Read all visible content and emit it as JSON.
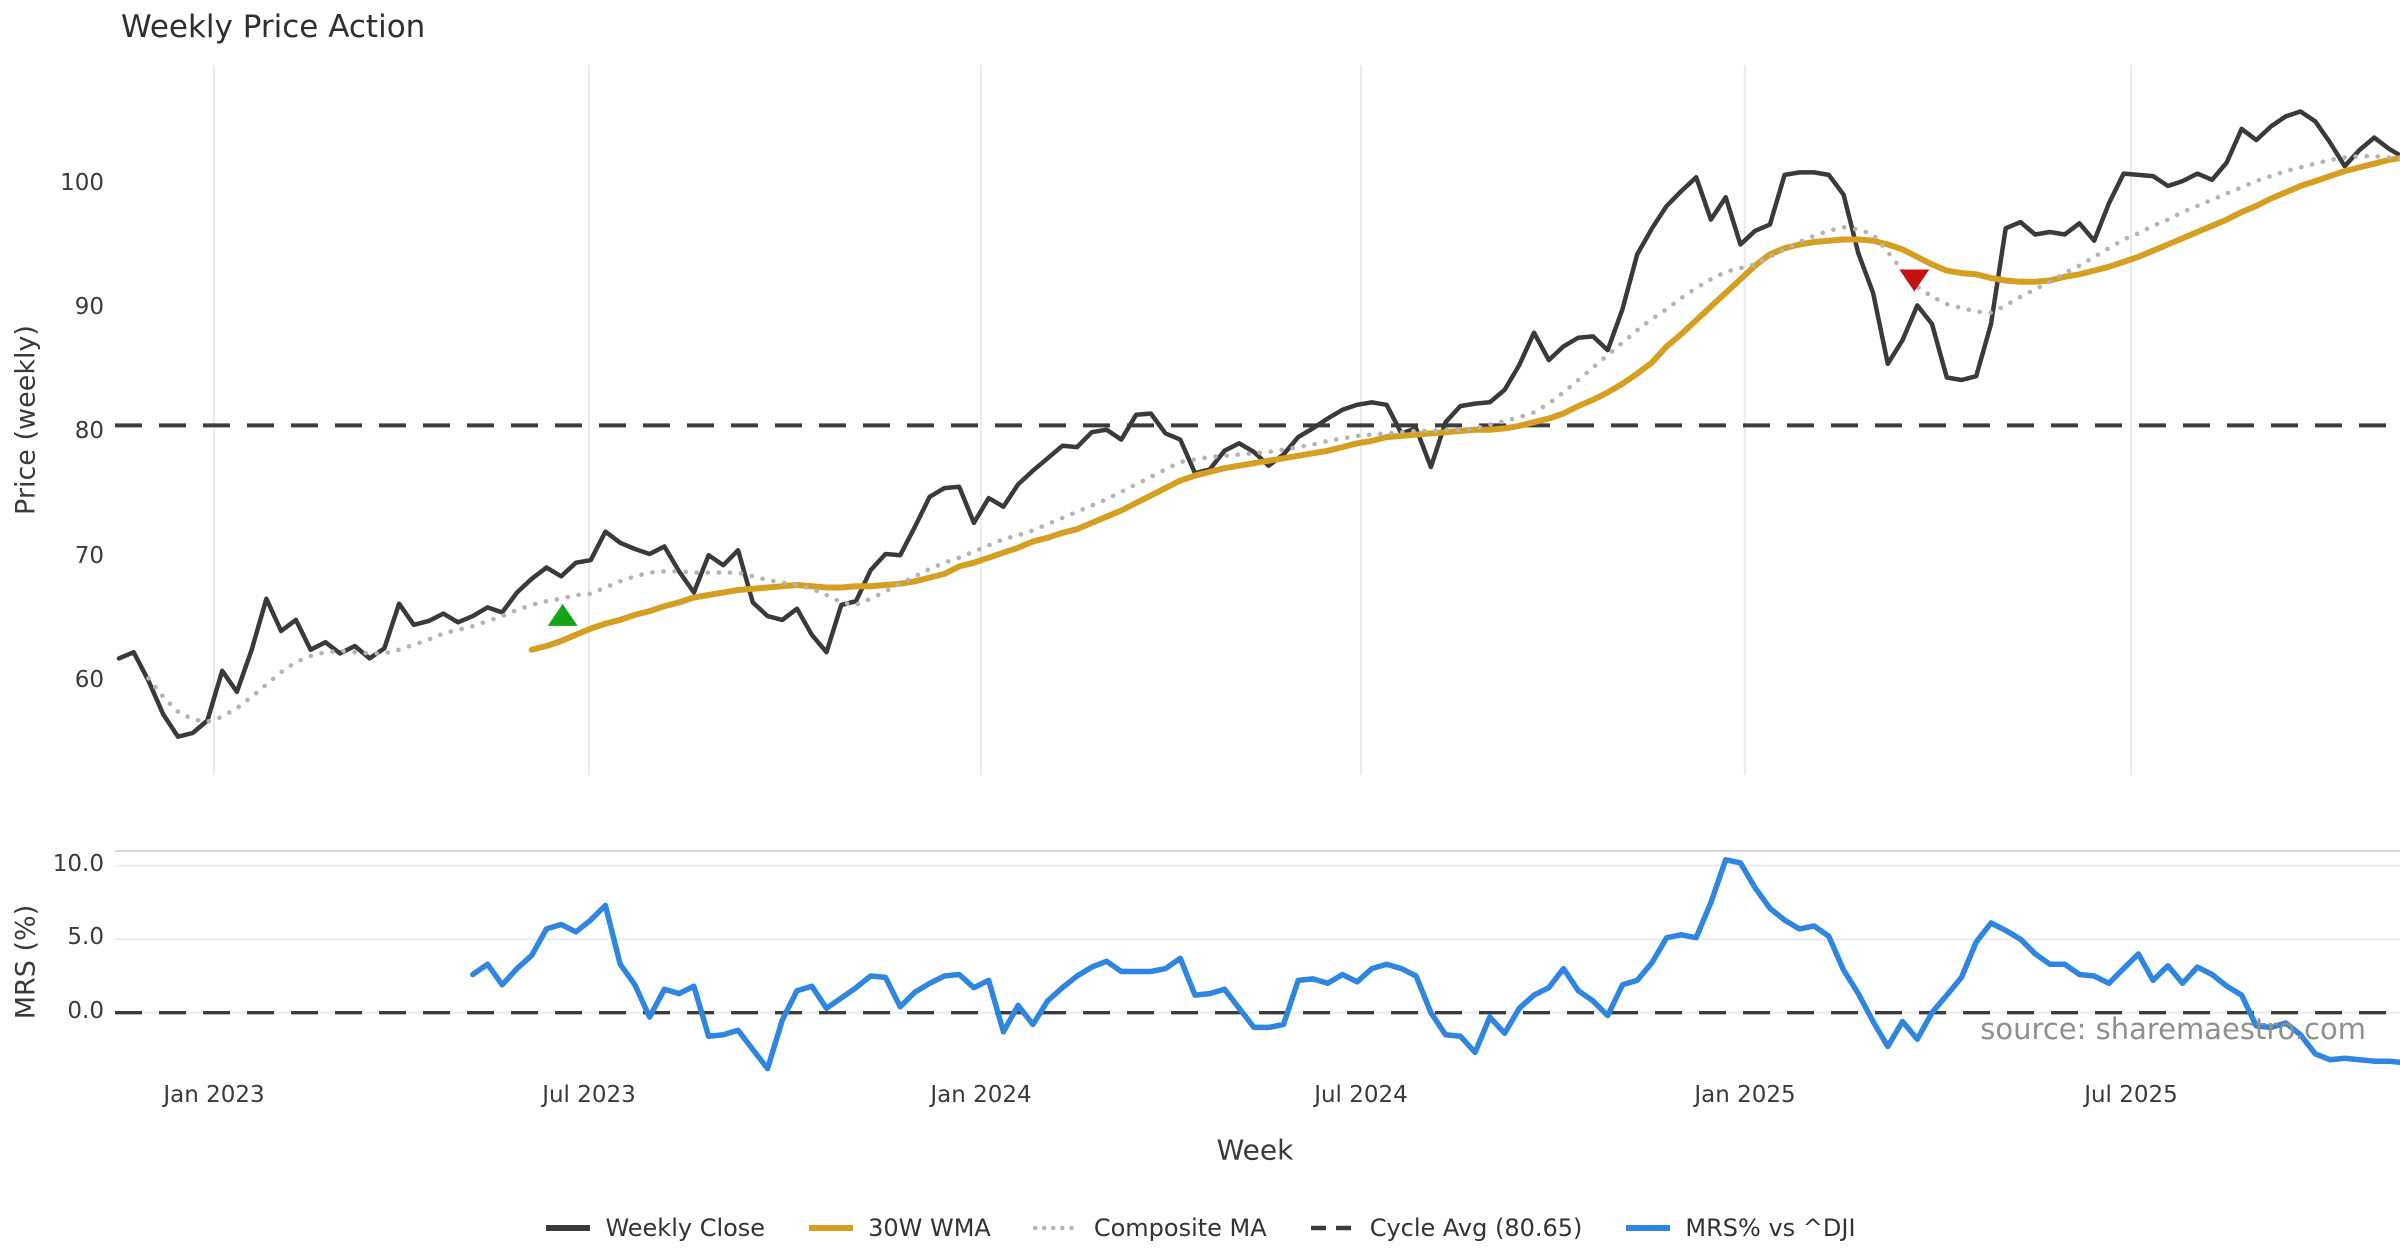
{
  "page": {
    "title": "Weekly Price Action",
    "source_note": "source: sharemaestro.com"
  },
  "colors": {
    "weekly_close": "#3a3a3a",
    "wma": "#d5a021",
    "composite": "#b3b3b8",
    "cycle_avg": "#3c3c3c",
    "mrs": "#2e86e0",
    "buy_marker": "#17a317",
    "sell_marker": "#c41111",
    "grid": "#e9e9f1",
    "panel_border": "#d5d5dc"
  },
  "legend": [
    {
      "label": "Weekly Close",
      "color": "#3a3a3a",
      "style": "solid"
    },
    {
      "label": "30W WMA",
      "color": "#d5a021",
      "style": "solid"
    },
    {
      "label": "Composite MA",
      "color": "#b3b3b8",
      "style": "dotted"
    },
    {
      "label": "Cycle Avg (80.65)",
      "color": "#3c3c3c",
      "style": "dashed"
    },
    {
      "label": "MRS% vs ^DJI",
      "color": "#2e86e0",
      "style": "solid"
    }
  ],
  "chart_data": [
    {
      "type": "line",
      "panel": "price",
      "ylabel": "Price (weekly)",
      "xlabel": "Week",
      "ylim": [
        52.5,
        109.6
      ],
      "yticks": [
        60,
        70,
        80,
        90,
        100
      ],
      "grid": "vertical",
      "legend_position": "bottom",
      "x_unit": "weeks since 2022-11-14 (weekly bars)",
      "xticks": [
        {
          "label": "Jan 2023",
          "week": 6.44
        },
        {
          "label": "Jul 2023",
          "week": 31.89
        },
        {
          "label": "Jan 2024",
          "week": 58.48
        },
        {
          "label": "Jul 2024",
          "week": 84.26
        },
        {
          "label": "Jan 2025",
          "week": 110.3
        },
        {
          "label": "Jul 2025",
          "week": 136.5
        }
      ],
      "series": [
        {
          "name": "Weekly Close",
          "color": "#3a3a3a",
          "style": "solid",
          "width": 4.5,
          "start_week": 0,
          "values": [
            61.9,
            62.4,
            60.1,
            57.4,
            55.6,
            55.9,
            56.9,
            60.9,
            59.2,
            62.6,
            66.7,
            64.1,
            65.0,
            62.6,
            63.2,
            62.3,
            62.9,
            61.9,
            62.7,
            66.3,
            64.6,
            64.9,
            65.5,
            64.8,
            65.3,
            66.0,
            65.6,
            67.2,
            68.3,
            69.2,
            68.5,
            69.6,
            69.8,
            72.1,
            71.2,
            70.7,
            70.3,
            70.9,
            68.9,
            67.2,
            70.2,
            69.4,
            70.6,
            66.4,
            65.3,
            65.0,
            65.9,
            63.8,
            62.4,
            66.2,
            66.5,
            69.0,
            70.3,
            70.2,
            72.5,
            74.9,
            75.6,
            75.7,
            72.8,
            74.8,
            74.1,
            75.9,
            77.0,
            78.0,
            79.0,
            78.9,
            80.1,
            80.3,
            79.5,
            81.5,
            81.6,
            80.0,
            79.5,
            76.8,
            77.1,
            78.6,
            79.2,
            78.5,
            77.4,
            78.3,
            79.7,
            80.4,
            81.2,
            81.9,
            82.3,
            82.5,
            82.3,
            80.0,
            80.4,
            77.3,
            80.9,
            82.2,
            82.4,
            82.5,
            83.5,
            85.5,
            88.1,
            85.9,
            87.0,
            87.7,
            87.8,
            86.7,
            90.0,
            94.4,
            96.5,
            98.3,
            99.5,
            100.6,
            97.2,
            99.0,
            95.2,
            96.3,
            96.8,
            100.8,
            101.0,
            101.0,
            100.8,
            99.2,
            94.5,
            91.3,
            85.6,
            87.5,
            90.3,
            88.8,
            84.5,
            84.3,
            84.6,
            88.8,
            96.5,
            97.0,
            96.0,
            96.2,
            96.0,
            96.9,
            95.5,
            98.5,
            100.9,
            100.8,
            100.7,
            99.9,
            100.3,
            100.9,
            100.4,
            101.8,
            104.5,
            103.6,
            104.7,
            105.5,
            105.9,
            105.1,
            103.4,
            101.5,
            102.8,
            103.8,
            102.9,
            102.2
          ]
        },
        {
          "name": "30W WMA",
          "color": "#d5a021",
          "style": "solid",
          "width": 6,
          "start_week": 28,
          "values": [
            62.6,
            62.9,
            63.3,
            63.8,
            64.3,
            64.7,
            65.0,
            65.4,
            65.7,
            66.1,
            66.4,
            66.8,
            67.0,
            67.2,
            67.4,
            67.5,
            67.6,
            67.7,
            67.8,
            67.7,
            67.6,
            67.6,
            67.7,
            67.7,
            67.8,
            67.9,
            68.1,
            68.4,
            68.7,
            69.3,
            69.6,
            70.0,
            70.4,
            70.8,
            71.3,
            71.6,
            72.0,
            72.3,
            72.8,
            73.3,
            73.8,
            74.4,
            75.0,
            75.6,
            76.2,
            76.6,
            76.9,
            77.2,
            77.4,
            77.6,
            77.8,
            78.0,
            78.2,
            78.4,
            78.6,
            78.9,
            79.2,
            79.4,
            79.7,
            79.8,
            79.9,
            80.0,
            80.1,
            80.2,
            80.3,
            80.3,
            80.4,
            80.6,
            80.9,
            81.2,
            81.6,
            82.2,
            82.7,
            83.3,
            84.0,
            84.8,
            85.7,
            87.0,
            88.0,
            89.1,
            90.2,
            91.3,
            92.4,
            93.5,
            94.4,
            94.9,
            95.2,
            95.4,
            95.5,
            95.6,
            95.6,
            95.5,
            95.2,
            94.8,
            94.2,
            93.6,
            93.1,
            92.9,
            92.8,
            92.5,
            92.3,
            92.2,
            92.2,
            92.3,
            92.6,
            92.8,
            93.1,
            93.4,
            93.8,
            94.2,
            94.7,
            95.2,
            95.7,
            96.2,
            96.7,
            97.2,
            97.8,
            98.3,
            98.9,
            99.4,
            99.9,
            100.3,
            100.7,
            101.1,
            101.4,
            101.7,
            102.0,
            102.2
          ]
        },
        {
          "name": "Composite MA",
          "color": "#b3b3b8",
          "style": "dotted",
          "width": 4.6,
          "start_week": 2,
          "values": [
            60.3,
            58.8,
            57.6,
            57.0,
            56.8,
            57.2,
            57.9,
            58.8,
            59.8,
            60.8,
            61.6,
            62.1,
            62.4,
            62.5,
            62.4,
            62.3,
            62.3,
            62.6,
            63.0,
            63.4,
            63.9,
            64.2,
            64.5,
            64.9,
            65.3,
            65.8,
            66.2,
            66.5,
            66.7,
            67.0,
            67.1,
            67.6,
            68.1,
            68.5,
            68.8,
            68.9,
            68.9,
            68.8,
            68.8,
            68.8,
            68.8,
            68.5,
            68.2,
            68.0,
            67.8,
            67.5,
            67.0,
            66.4,
            66.2,
            66.7,
            67.3,
            67.9,
            68.5,
            69.1,
            69.6,
            70.0,
            70.5,
            71.0,
            71.5,
            71.8,
            72.2,
            72.7,
            73.2,
            73.7,
            74.2,
            74.7,
            75.3,
            75.9,
            76.5,
            77.1,
            77.7,
            77.9,
            78.1,
            78.2,
            78.3,
            78.4,
            78.5,
            78.7,
            78.9,
            79.1,
            79.4,
            79.6,
            79.8,
            79.9,
            80.0,
            80.1,
            80.2,
            80.2,
            80.3,
            80.3,
            80.4,
            80.7,
            81.0,
            81.3,
            81.7,
            82.4,
            83.3,
            84.3,
            85.3,
            86.3,
            87.3,
            88.3,
            89.2,
            90.0,
            90.9,
            91.7,
            92.4,
            93.0,
            93.3,
            93.6,
            94.2,
            94.8,
            95.4,
            95.9,
            96.3,
            96.6,
            96.4,
            96.0,
            94.6,
            93.1,
            91.8,
            91.0,
            90.4,
            90.1,
            89.8,
            89.7,
            90.3,
            91.0,
            91.6,
            92.2,
            92.9,
            93.5,
            94.2,
            94.9,
            95.6,
            96.1,
            96.7,
            97.2,
            97.8,
            98.3,
            98.8,
            99.3,
            99.8,
            100.3,
            100.7,
            101.1,
            101.4,
            101.7,
            102.0,
            102.2,
            102.3,
            102.3,
            102.2,
            102.1
          ]
        },
        {
          "name": "Cycle Avg (80.65)",
          "color": "#3c3c3c",
          "style": "dashed",
          "width": 4,
          "constant": 80.65
        }
      ],
      "markers": [
        {
          "type": "buy-signal",
          "shape": "triangle-up",
          "color": "#17a317",
          "week": 30.1,
          "value": 65.4
        },
        {
          "type": "sell-signal",
          "shape": "triangle-down",
          "color": "#c41111",
          "week": 121.8,
          "value": 92.3
        }
      ]
    },
    {
      "type": "line",
      "panel": "mrs",
      "ylabel": "MRS (%)",
      "ylim": [
        -4.5,
        11.0
      ],
      "yticks": [
        0,
        5,
        10
      ],
      "ytick_labels": [
        "0.0",
        "5.0",
        "10.0"
      ],
      "grid": "horizontal",
      "series": [
        {
          "name": "MRS% vs ^DJI",
          "color": "#2e86e0",
          "style": "solid",
          "width": 5.5,
          "start_week": 24,
          "values": [
            2.6,
            3.3,
            1.9,
            3.0,
            3.9,
            5.7,
            6.0,
            5.5,
            6.3,
            7.3,
            3.3,
            1.9,
            -0.3,
            1.6,
            1.3,
            1.8,
            -1.6,
            -1.5,
            -1.2,
            -2.5,
            -3.8,
            -0.5,
            1.5,
            1.8,
            0.3,
            1.0,
            1.7,
            2.5,
            2.4,
            0.4,
            1.4,
            2.0,
            2.5,
            2.6,
            1.7,
            2.2,
            -1.3,
            0.5,
            -0.8,
            0.8,
            1.7,
            2.5,
            3.1,
            3.5,
            2.8,
            2.8,
            2.8,
            3.0,
            3.7,
            1.2,
            1.3,
            1.6,
            0.3,
            -1.0,
            -1.0,
            -0.8,
            2.2,
            2.3,
            2.0,
            2.6,
            2.1,
            3.0,
            3.3,
            3.0,
            2.5,
            0.0,
            -1.5,
            -1.6,
            -2.7,
            -0.3,
            -1.4,
            0.3,
            1.2,
            1.7,
            3.0,
            1.5,
            0.8,
            -0.2,
            1.9,
            2.2,
            3.4,
            5.1,
            5.3,
            5.1,
            7.5,
            10.4,
            10.2,
            8.5,
            7.1,
            6.3,
            5.7,
            5.9,
            5.2,
            2.9,
            1.3,
            -0.6,
            -2.3,
            -0.6,
            -1.8,
            0.0,
            1.2,
            2.4,
            4.8,
            6.1,
            5.6,
            5.0,
            4.0,
            3.3,
            3.3,
            2.6,
            2.5,
            2.0,
            3.0,
            4.0,
            2.2,
            3.2,
            2.0,
            3.1,
            2.6,
            1.8,
            1.2,
            -0.9,
            -1.0,
            -0.7,
            -1.5,
            -2.8,
            -3.2,
            -3.1,
            -3.2,
            -3.3,
            -3.3,
            -3.4
          ]
        },
        {
          "name": "Zero line",
          "color": "#3c3c3c",
          "style": "dashed",
          "width": 3.4,
          "constant": 0.0
        }
      ]
    }
  ]
}
